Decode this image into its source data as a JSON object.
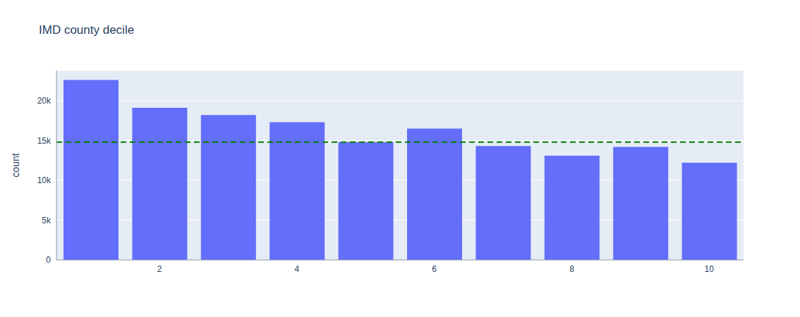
{
  "chart_data": {
    "type": "bar",
    "title": "IMD county decile",
    "y_label": "count",
    "x": [
      1,
      2,
      3,
      4,
      5,
      6,
      7,
      8,
      9,
      10
    ],
    "values": [
      22600,
      19100,
      18200,
      17300,
      14800,
      16500,
      14300,
      13100,
      14200,
      12200
    ],
    "color": "#636efa",
    "xlim": [
      0.5,
      10.5
    ],
    "xticks": [
      2,
      4,
      6,
      8,
      10
    ],
    "ylim": [
      0,
      23800
    ],
    "yticks": [
      0,
      {
        "value": 5000,
        "label": "5k"
      },
      {
        "value": 10000,
        "label": "10k"
      },
      {
        "value": 15000,
        "label": "15k"
      },
      {
        "value": 20000,
        "label": "20k"
      }
    ],
    "grid": true,
    "hline": {
      "value": 14800,
      "color": "#008000",
      "line_style": "dashed"
    }
  }
}
